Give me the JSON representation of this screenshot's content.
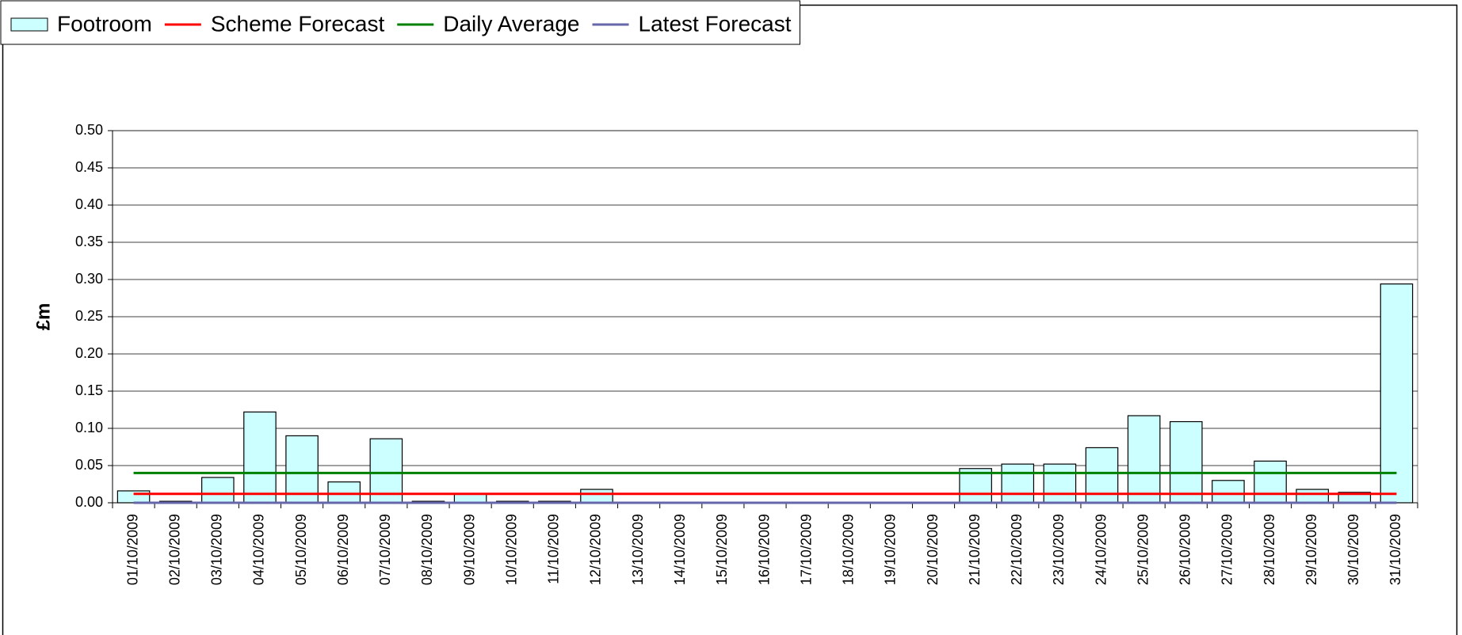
{
  "chart_data": {
    "type": "bar",
    "ylabel": "£m",
    "categories": [
      "01/10/2009",
      "02/10/2009",
      "03/10/2009",
      "04/10/2009",
      "05/10/2009",
      "06/10/2009",
      "07/10/2009",
      "08/10/2009",
      "09/10/2009",
      "10/10/2009",
      "11/10/2009",
      "12/10/2009",
      "13/10/2009",
      "14/10/2009",
      "15/10/2009",
      "16/10/2009",
      "17/10/2009",
      "18/10/2009",
      "19/10/2009",
      "20/10/2009",
      "21/10/2009",
      "22/10/2009",
      "23/10/2009",
      "24/10/2009",
      "25/10/2009",
      "26/10/2009",
      "27/10/2009",
      "28/10/2009",
      "29/10/2009",
      "30/10/2009",
      "31/10/2009"
    ],
    "series": [
      {
        "name": "Footroom",
        "type": "bar",
        "color": "#ccffff",
        "values": [
          0.016,
          0.002,
          0.034,
          0.122,
          0.09,
          0.028,
          0.086,
          0.002,
          0.012,
          0.002,
          0.002,
          0.018,
          0,
          0,
          0,
          0,
          0,
          0,
          0,
          0,
          0.046,
          0.052,
          0.052,
          0.074,
          0.117,
          0.109,
          0.03,
          0.056,
          0.018,
          0.014,
          0.294
        ]
      },
      {
        "name": "Scheme Forecast",
        "type": "line",
        "color": "#ff0000",
        "values": [
          0.012,
          0.012,
          0.012,
          0.012,
          0.012,
          0.012,
          0.012,
          0.012,
          0.012,
          0.012,
          0.012,
          0.012,
          0.012,
          0.012,
          0.012,
          0.012,
          0.012,
          0.012,
          0.012,
          0.012,
          0.012,
          0.012,
          0.012,
          0.012,
          0.012,
          0.012,
          0.012,
          0.012,
          0.012,
          0.012,
          0.012
        ]
      },
      {
        "name": "Daily Average",
        "type": "line",
        "color": "#008000",
        "values": [
          0.04,
          0.04,
          0.04,
          0.04,
          0.04,
          0.04,
          0.04,
          0.04,
          0.04,
          0.04,
          0.04,
          0.04,
          0.04,
          0.04,
          0.04,
          0.04,
          0.04,
          0.04,
          0.04,
          0.04,
          0.04,
          0.04,
          0.04,
          0.04,
          0.04,
          0.04,
          0.04,
          0.04,
          0.04,
          0.04,
          0.04
        ]
      },
      {
        "name": "Latest Forecast",
        "type": "line",
        "color": "#6666aa",
        "values": [
          0,
          0,
          0,
          0,
          0,
          0,
          0,
          0,
          0,
          0,
          0,
          0,
          0,
          0,
          0,
          0,
          0,
          0,
          0,
          0,
          0,
          0,
          0,
          0,
          0,
          0,
          0,
          0,
          0,
          0,
          0
        ]
      }
    ],
    "ylim": [
      0,
      0.5
    ],
    "yticks": [
      {
        "value": 0,
        "label": "0.00"
      },
      {
        "value": 0.05,
        "label": "0.05"
      },
      {
        "value": 0.1,
        "label": "0.10"
      },
      {
        "value": 0.15,
        "label": "0.15"
      },
      {
        "value": 0.2,
        "label": "0.20"
      },
      {
        "value": 0.25,
        "label": "0.25"
      },
      {
        "value": 0.3,
        "label": "0.30"
      },
      {
        "value": 0.35,
        "label": "0.35"
      },
      {
        "value": 0.4,
        "label": "0.40"
      },
      {
        "value": 0.45,
        "label": "0.45"
      },
      {
        "value": 0.5,
        "label": "0.50"
      }
    ],
    "grid": true,
    "legend": "top-left"
  }
}
